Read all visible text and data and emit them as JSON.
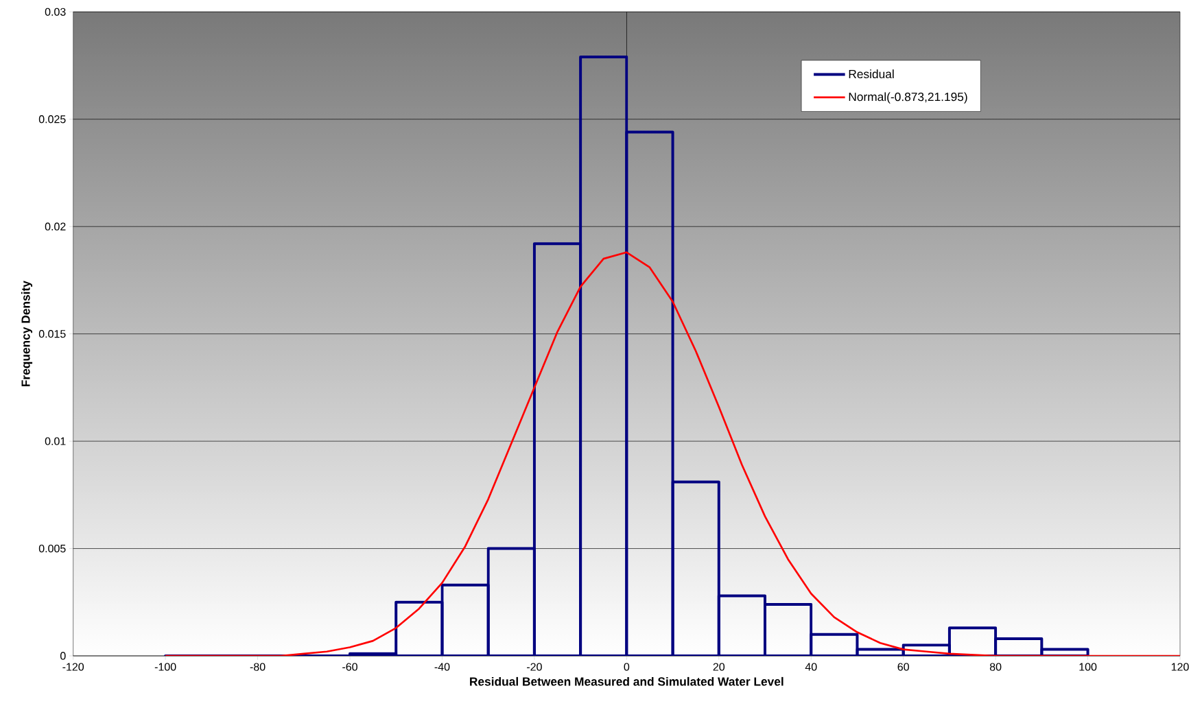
{
  "chart_data": {
    "type": "histogram",
    "xlabel": "Residual Between Measured and Simulated Water Level",
    "ylabel": "Frequency Density",
    "bins": [
      -100,
      -90,
      -80,
      -70,
      -60,
      -50,
      -40,
      -30,
      -20,
      -10,
      0,
      10,
      20,
      30,
      40,
      50,
      60,
      70,
      80,
      90,
      100
    ],
    "series": [
      {
        "name": "Residual",
        "color": "#000080",
        "values": [
          0,
          0,
          0,
          0,
          0.0001,
          0.0025,
          0.0033,
          0.005,
          0.0192,
          0.0279,
          0.0244,
          0.0081,
          0.0028,
          0.0024,
          0.001,
          0.0003,
          0.0005,
          0.0013,
          0.0008,
          0.0003
        ]
      },
      {
        "name": "Normal(-0.873,21.195)",
        "type": "line",
        "color": "#ff0000",
        "x": [
          -100,
          -90,
          -80,
          -75,
          -70,
          -65,
          -60,
          -55,
          -50,
          -45,
          -40,
          -35,
          -30,
          -25,
          -20,
          -15,
          -10,
          -5,
          0,
          5,
          10,
          15,
          20,
          25,
          30,
          35,
          40,
          45,
          50,
          55,
          60,
          65,
          70,
          80,
          90,
          100,
          110,
          120
        ],
        "values": [
          0,
          0,
          0,
          0,
          0.0001,
          0.0002,
          0.0004,
          0.0007,
          0.0013,
          0.0022,
          0.0034,
          0.0051,
          0.0073,
          0.0099,
          0.0125,
          0.0151,
          0.0172,
          0.0185,
          0.0188,
          0.0181,
          0.0165,
          0.0142,
          0.0116,
          0.0089,
          0.0065,
          0.0045,
          0.0029,
          0.0018,
          0.0011,
          0.0006,
          0.0003,
          0.0002,
          0.0001,
          0,
          0,
          0,
          0,
          0
        ]
      }
    ],
    "xlim": [
      -120,
      120
    ],
    "ylim": [
      0,
      0.03
    ],
    "xticks": [
      -120,
      -100,
      -80,
      -60,
      -40,
      -20,
      0,
      20,
      40,
      60,
      80,
      100,
      120
    ],
    "yticks": [
      0,
      0.005,
      0.01,
      0.015,
      0.02,
      0.025,
      0.03
    ],
    "ref_lines": [
      {
        "axis": "x",
        "value": 0,
        "color": "#000000"
      }
    ],
    "grid": "y",
    "legend": "top right",
    "line_style": "solid",
    "marker": "none"
  }
}
